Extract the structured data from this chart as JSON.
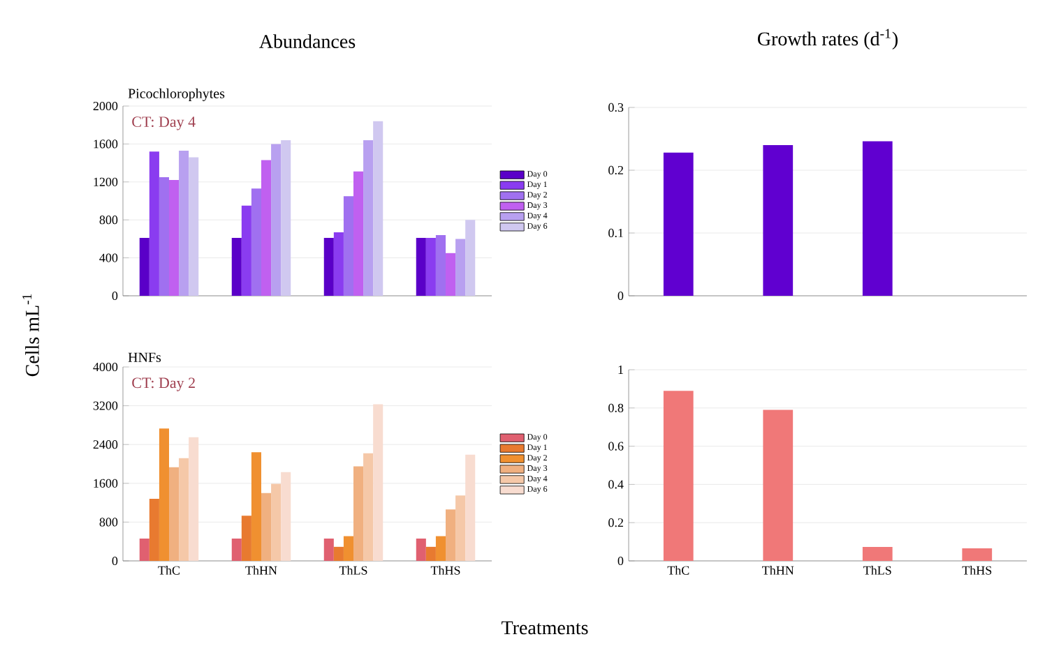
{
  "chart_data": [
    {
      "type": "bar",
      "title": "Abundances",
      "subtitle": "Picochlorophytes",
      "ylabel": "Cells mL$^{-1}$",
      "annotations": [
        "CT: Day 4"
      ],
      "categories": [
        null,
        null,
        null,
        null
      ],
      "ylim": [
        0,
        2000
      ],
      "yticks": [
        0,
        400,
        800,
        1200,
        1600,
        2000
      ],
      "grid": "y",
      "legend": "right",
      "tick_labels": "y",
      "series": [
        {
          "name": "Day 0",
          "color": "#5a00c8",
          "values": [
            610,
            610,
            610,
            610
          ]
        },
        {
          "name": "Day 1",
          "color": "#8a3cf0",
          "values": [
            1520,
            950,
            670,
            610
          ]
        },
        {
          "name": "Day 2",
          "color": "#a070f0",
          "values": [
            1250,
            1130,
            1050,
            640
          ]
        },
        {
          "name": "Day 3",
          "color": "#c060f0",
          "values": [
            1220,
            1430,
            1310,
            450
          ]
        },
        {
          "name": "Day 4",
          "color": "#b8a0f0",
          "values": [
            1530,
            1600,
            1640,
            600
          ]
        },
        {
          "name": "Day 6",
          "color": "#d0c8f0",
          "values": [
            1460,
            1640,
            1840,
            800
          ]
        }
      ]
    },
    {
      "type": "bar",
      "title": "Growth rates (d$^{-1}$)",
      "categories": [
        null,
        null,
        null,
        null
      ],
      "color": "#6000d0",
      "values": [
        0.228,
        0.24,
        0.246,
        null
      ],
      "ylim": [
        0,
        0.3
      ],
      "yticks": [
        0,
        0.1,
        0.2,
        0.3
      ],
      "grid": "y",
      "tick_labels": "y"
    },
    {
      "type": "bar",
      "subtitle": "HNFs",
      "xlabel": "Treatments",
      "annotations": [
        "CT: Day 2"
      ],
      "categories": [
        "ThC",
        "ThHN",
        "ThLS",
        "ThHS"
      ],
      "ylim": [
        0,
        4000
      ],
      "yticks": [
        0,
        800,
        1600,
        2400,
        3200,
        4000
      ],
      "grid": "y",
      "legend": "right",
      "series": [
        {
          "name": "Day 0",
          "color": "#e06070",
          "values": [
            460,
            460,
            460,
            460
          ]
        },
        {
          "name": "Day 1",
          "color": "#e87a30",
          "values": [
            1280,
            930,
            290,
            290
          ]
        },
        {
          "name": "Day 2",
          "color": "#f09030",
          "values": [
            2730,
            2240,
            510,
            510
          ]
        },
        {
          "name": "Day 3",
          "color": "#f0b080",
          "values": [
            1930,
            1400,
            1950,
            1060
          ]
        },
        {
          "name": "Day 4",
          "color": "#f5c8a8",
          "values": [
            2120,
            1590,
            2220,
            1350
          ]
        },
        {
          "name": "Day 6",
          "color": "#f8dcd0",
          "values": [
            2550,
            1830,
            3230,
            2190
          ]
        }
      ]
    },
    {
      "type": "bar",
      "categories": [
        "ThC",
        "ThHN",
        "ThLS",
        "ThHS"
      ],
      "color": "#f07878",
      "values": [
        0.89,
        0.79,
        0.073,
        0.066
      ],
      "ylim": [
        0,
        1
      ],
      "yticks": [
        0,
        0.2,
        0.4,
        0.6,
        0.8,
        1
      ],
      "grid": "y"
    }
  ]
}
